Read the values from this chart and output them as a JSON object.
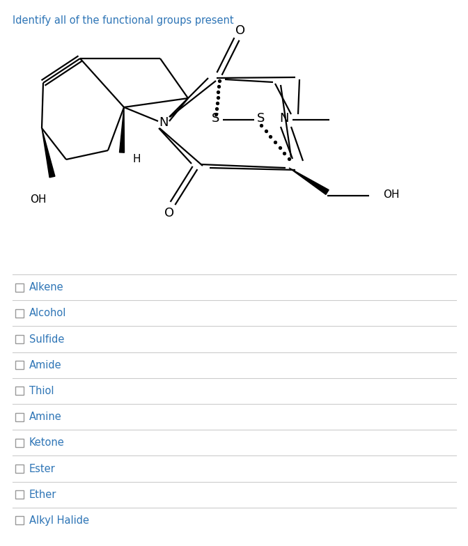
{
  "title": "Identify all of the functional groups present",
  "title_color": "#2e75b6",
  "title_fontsize": 10.5,
  "options": [
    "Alkene",
    "Alcohol",
    "Sulfide",
    "Amide",
    "Thiol",
    "Amine",
    "Ketone",
    "Ester",
    "Ether",
    "Alkyl Halide"
  ],
  "option_color": "#2e75b6",
  "option_fontsize": 10.5,
  "checkbox_color": "#999999",
  "line_color": "#cccccc",
  "background_color": "#ffffff"
}
